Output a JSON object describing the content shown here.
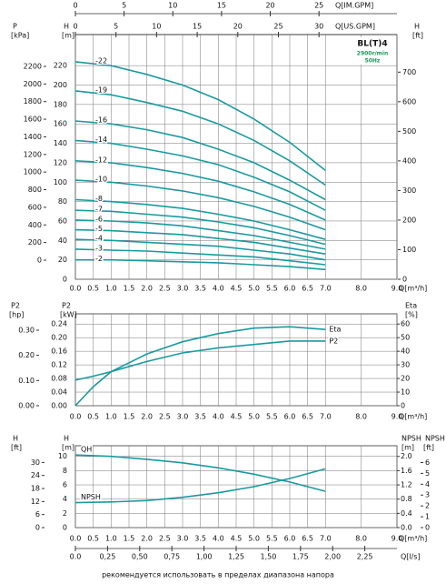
{
  "chart_data": [
    {
      "type": "line",
      "title": "BL(T)4",
      "annotations": [
        "2900r/min",
        "50Hz"
      ],
      "x": [
        0,
        1,
        2,
        3,
        4,
        5,
        6,
        7
      ],
      "xlim": [
        0,
        9
      ],
      "xticks": [
        {
          "value": 0,
          "label": "0.0"
        },
        0.5,
        {
          "value": 1,
          "label": "1.0"
        },
        1.5,
        {
          "value": 2,
          "label": "2.0"
        },
        2.5,
        {
          "value": 3,
          "label": "3.0"
        },
        3.5,
        {
          "value": 4,
          "label": "4.0"
        },
        4.5,
        {
          "value": 5,
          "label": "5.0"
        },
        5.5,
        {
          "value": 6,
          "label": "6.0"
        },
        6.5,
        {
          "value": 7,
          "label": "7.0"
        },
        {
          "value": 8,
          "label": "8.0"
        },
        {
          "value": 9,
          "label": "9.0"
        }
      ],
      "xlabel": "Q[m³/h]",
      "ylim": [
        0,
        252
      ],
      "yticks": [
        0,
        20,
        40,
        60,
        80,
        100,
        120,
        140,
        160,
        180,
        200,
        220
      ],
      "ylabel": "H",
      "yunit": "[m]",
      "extra_axes": [
        {
          "side": "left",
          "title": "P",
          "unit": "[kPa]",
          "lim": [
            -217,
            2561
          ],
          "ticks": [
            0,
            200,
            400,
            600,
            800,
            1000,
            1200,
            1400,
            1600,
            1800,
            2000,
            2200
          ]
        },
        {
          "side": "right",
          "title": "H",
          "unit": "[ft]",
          "lim": [
            0,
            827
          ],
          "ticks": [
            0,
            100,
            200,
            300,
            400,
            500,
            600,
            700
          ]
        },
        {
          "side": "top",
          "title": "Q[IM.GPM]",
          "lim": [
            0,
            33
          ],
          "ticks": [
            0,
            5,
            10,
            15,
            20,
            25
          ]
        },
        {
          "side": "top",
          "title": "Q[US.GPM]",
          "lim": [
            0,
            39.6
          ],
          "ticks": [
            0,
            5,
            10,
            15,
            20,
            25,
            30
          ]
        }
      ],
      "grid": true,
      "series": [
        {
          "name": "-22",
          "color": "#1a9aa0",
          "values": [
            224,
            220,
            211,
            200,
            185,
            165,
            141,
            112
          ]
        },
        {
          "name": "-19",
          "color": "#1a9aa0",
          "values": [
            194,
            190,
            182,
            173,
            160,
            143,
            122,
            97
          ]
        },
        {
          "name": "-16",
          "color": "#1a9aa0",
          "values": [
            163,
            160,
            154,
            146,
            134,
            120,
            102,
            82
          ]
        },
        {
          "name": "-14",
          "color": "#1a9aa0",
          "values": [
            143,
            140,
            134,
            127,
            118,
            105,
            90,
            71
          ]
        },
        {
          "name": "-12",
          "color": "#1a9aa0",
          "values": [
            122,
            120,
            115,
            109,
            101,
            90,
            77,
            61
          ]
        },
        {
          "name": "-10",
          "color": "#1a9aa0",
          "values": [
            102,
            100,
            96,
            91,
            84,
            75,
            64,
            51
          ]
        },
        {
          "name": "-8",
          "color": "#1a9aa0",
          "values": [
            82,
            80,
            77,
            73,
            67,
            60,
            51,
            41
          ]
        },
        {
          "name": "-7",
          "color": "#1a9aa0",
          "values": [
            71,
            70,
            67,
            64,
            59,
            53,
            45,
            36
          ]
        },
        {
          "name": "-6",
          "color": "#1a9aa0",
          "values": [
            61,
            60,
            58,
            55,
            50,
            45,
            38,
            31
          ]
        },
        {
          "name": "-5",
          "color": "#1a9aa0",
          "values": [
            51,
            50,
            48,
            46,
            42,
            38,
            32,
            26
          ]
        },
        {
          "name": "-4",
          "color": "#1a9aa0",
          "values": [
            41,
            40,
            38,
            36,
            34,
            30,
            26,
            20
          ]
        },
        {
          "name": "-3",
          "color": "#1a9aa0",
          "values": [
            31,
            30,
            29,
            27,
            25,
            23,
            19,
            15
          ]
        },
        {
          "name": "-2",
          "color": "#1a9aa0",
          "values": [
            20,
            20,
            19,
            18,
            17,
            15,
            13,
            10
          ]
        }
      ]
    },
    {
      "type": "line",
      "x": [
        0,
        0.5,
        1,
        2,
        3,
        4,
        5,
        6,
        7
      ],
      "xlim": [
        0,
        9
      ],
      "xticks": [
        {
          "value": 0,
          "label": "0.0"
        },
        0.5,
        {
          "value": 1,
          "label": "1.0"
        },
        1.5,
        {
          "value": 2,
          "label": "2.0"
        },
        2.5,
        {
          "value": 3,
          "label": "3.0"
        },
        3.5,
        {
          "value": 4,
          "label": "4.0"
        },
        4.5,
        {
          "value": 5,
          "label": "5.0"
        },
        5.5,
        {
          "value": 6,
          "label": "6.0"
        },
        6.5,
        {
          "value": 7,
          "label": "7.0"
        },
        {
          "value": 8,
          "label": "8.0"
        },
        {
          "value": 9,
          "label": "9.0"
        }
      ],
      "xlabel": "Q[m³/h]",
      "ylim": [
        0,
        0.27
      ],
      "yticks": [
        {
          "value": 0,
          "label": "0.00"
        },
        {
          "value": 0.04,
          "label": "0.04"
        },
        {
          "value": 0.08,
          "label": "0.08"
        },
        {
          "value": 0.12,
          "label": "0.12"
        },
        {
          "value": 0.16,
          "label": "0.16"
        },
        {
          "value": 0.2,
          "label": "0.20"
        },
        {
          "value": 0.24,
          "label": "0.24"
        }
      ],
      "ylabel": "P2",
      "yunit": "[kW]",
      "y2lim": [
        0,
        67.5
      ],
      "y2ticks": [
        0,
        10,
        20,
        30,
        40,
        50,
        60
      ],
      "y2label": "Eta",
      "y2unit": "[%]",
      "extra_axes": [
        {
          "side": "left",
          "title": "P2",
          "unit": "[hp]",
          "lim": [
            0,
            0.365
          ],
          "ticks": [
            {
              "value": 0,
              "label": "0.00"
            },
            {
              "value": 0.1,
              "label": "0.10"
            },
            {
              "value": 0.2,
              "label": "0.20"
            },
            {
              "value": 0.3,
              "label": "0.30"
            }
          ]
        }
      ],
      "grid": true,
      "series": [
        {
          "name": "Eta",
          "color": "#1a9aa0",
          "axis": "y2",
          "values": [
            0,
            14,
            25,
            38,
            47,
            53,
            57,
            58,
            56
          ]
        },
        {
          "name": "P2",
          "color": "#1a9aa0",
          "values": [
            0.075,
            0.087,
            0.1,
            0.13,
            0.155,
            0.17,
            0.18,
            0.19,
            0.19
          ]
        }
      ]
    },
    {
      "type": "line",
      "x": [
        0,
        1,
        2,
        3,
        4,
        5,
        6,
        7
      ],
      "xlim": [
        0,
        9
      ],
      "xticks": [
        {
          "value": 0,
          "label": "0.0"
        },
        0.5,
        {
          "value": 1,
          "label": "1.0"
        },
        1.5,
        {
          "value": 2,
          "label": "2.0"
        },
        2.5,
        {
          "value": 3,
          "label": "3.0"
        },
        3.5,
        {
          "value": 4,
          "label": "4.0"
        },
        4.5,
        {
          "value": 5,
          "label": "5.0"
        },
        5.5,
        {
          "value": 6,
          "label": "6.0"
        },
        6.5,
        {
          "value": 7,
          "label": "7.0"
        },
        {
          "value": 8,
          "label": "8.0"
        },
        {
          "value": 9,
          "label": "9.0"
        }
      ],
      "xlabel": "Q[m³/h]",
      "ylim": [
        0,
        11.5
      ],
      "yticks": [
        0,
        2,
        4,
        6,
        8,
        10
      ],
      "ylabel": "H",
      "yunit": "[m]",
      "y2lim": [
        0,
        2.3
      ],
      "y2ticks": [
        {
          "value": 0,
          "label": "0.0"
        },
        {
          "value": 0.4,
          "label": "0.4"
        },
        {
          "value": 0.8,
          "label": "0.8"
        },
        {
          "value": 1.2,
          "label": "1.2"
        },
        {
          "value": 1.6,
          "label": "1.6"
        },
        {
          "value": 2,
          "label": "2.0"
        }
      ],
      "y2label": "NPSH",
      "y2unit": "[m]",
      "extra_axes": [
        {
          "side": "left",
          "title": "H",
          "unit": "[ft]",
          "lim": [
            0,
            37.7
          ],
          "ticks": [
            0,
            6,
            12,
            18,
            24,
            30
          ]
        },
        {
          "side": "right",
          "title": "NPSH",
          "unit": "[ft]",
          "lim": [
            0,
            7.55
          ],
          "ticks": [
            0,
            1,
            2,
            3,
            4,
            5,
            6
          ]
        },
        {
          "side": "bottom",
          "title": "Q[l/s]",
          "lim": [
            0,
            2.5
          ],
          "ticks": [
            {
              "value": 0,
              "label": "0.0"
            },
            {
              "value": 0.25,
              "label": "0,25"
            },
            {
              "value": 0.5,
              "label": "0,50"
            },
            {
              "value": 0.75,
              "label": "0,75"
            },
            {
              "value": 1,
              "label": "1,00"
            },
            {
              "value": 1.25,
              "label": "1,25"
            },
            {
              "value": 1.5,
              "label": "1,50"
            },
            {
              "value": 1.75,
              "label": "1,75"
            },
            {
              "value": 2,
              "label": "2,00"
            },
            {
              "value": 2.25,
              "label": "2,25"
            }
          ]
        }
      ],
      "grid": true,
      "series": [
        {
          "name": "QH",
          "color": "#1a9aa0",
          "values": [
            10.2,
            10.0,
            9.6,
            9.1,
            8.4,
            7.5,
            6.4,
            5.1
          ]
        },
        {
          "name": "NPSH",
          "color": "#1a9aa0",
          "axis": "y2",
          "values": [
            0.7,
            0.72,
            0.76,
            0.85,
            0.98,
            1.15,
            1.38,
            1.65
          ]
        }
      ]
    }
  ],
  "footer": "рекомендуется использовать в пределах диапазона напора"
}
